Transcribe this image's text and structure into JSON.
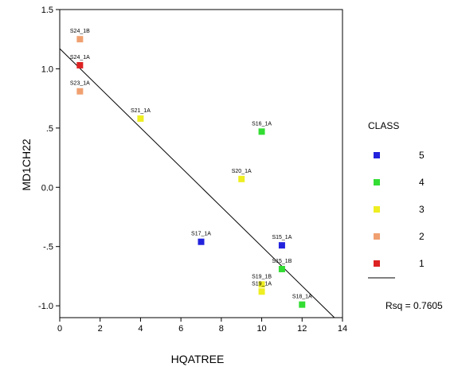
{
  "chart_data": {
    "type": "scatter",
    "title": "",
    "xlabel": "HQATREE",
    "ylabel": "MD1CH22",
    "xlim": [
      0,
      14
    ],
    "ylim": [
      -1.1,
      1.5
    ],
    "x_ticks": [
      0,
      2,
      4,
      6,
      8,
      10,
      12,
      14
    ],
    "x_tick_labels": [
      "0",
      "2",
      "4",
      "6",
      "8",
      "10",
      "12",
      "14"
    ],
    "y_ticks": [
      1.5,
      1.0,
      0.5,
      0.0,
      -0.5,
      -1.0
    ],
    "y_tick_labels": [
      "1.5",
      "1.0",
      ".5",
      "0.0",
      "-.5",
      "-1.0"
    ],
    "grid": false,
    "points": [
      {
        "label": "S24_1B",
        "x": 1,
        "y": 1.25,
        "class": "2"
      },
      {
        "label": "S24_1A",
        "x": 1,
        "y": 1.03,
        "class": "1"
      },
      {
        "label": "S23_1A",
        "x": 1,
        "y": 0.81,
        "class": "2"
      },
      {
        "label": "S21_1A",
        "x": 4,
        "y": 0.58,
        "class": "3"
      },
      {
        "label": "S16_1A",
        "x": 10,
        "y": 0.47,
        "class": "4"
      },
      {
        "label": "S20_1A",
        "x": 9,
        "y": 0.07,
        "class": "3"
      },
      {
        "label": "S17_1A",
        "x": 7,
        "y": -0.46,
        "class": "5"
      },
      {
        "label": "S15_1A",
        "x": 11,
        "y": -0.49,
        "class": "5"
      },
      {
        "label": "S15_1B",
        "x": 11,
        "y": -0.69,
        "class": "4"
      },
      {
        "label": "S19_1B",
        "x": 10,
        "y": -0.82,
        "class": "3"
      },
      {
        "label": "S19_1A",
        "x": 10,
        "y": -0.88,
        "class": "3"
      },
      {
        "label": "S18_1A",
        "x": 12,
        "y": -0.99,
        "class": "4"
      }
    ],
    "fit_line": {
      "x": [
        0,
        13.6
      ],
      "y": [
        1.17,
        -1.1
      ]
    },
    "legend": {
      "title": "CLASS",
      "position": "right",
      "entries": [
        {
          "name": "5",
          "color": "#2222dd"
        },
        {
          "name": "4",
          "color": "#33dd33"
        },
        {
          "name": "3",
          "color": "#eeee22"
        },
        {
          "name": "2",
          "color": "#f0a070"
        },
        {
          "name": "1",
          "color": "#dd2222"
        }
      ],
      "line_label": "Rsq = 0.7605"
    }
  }
}
